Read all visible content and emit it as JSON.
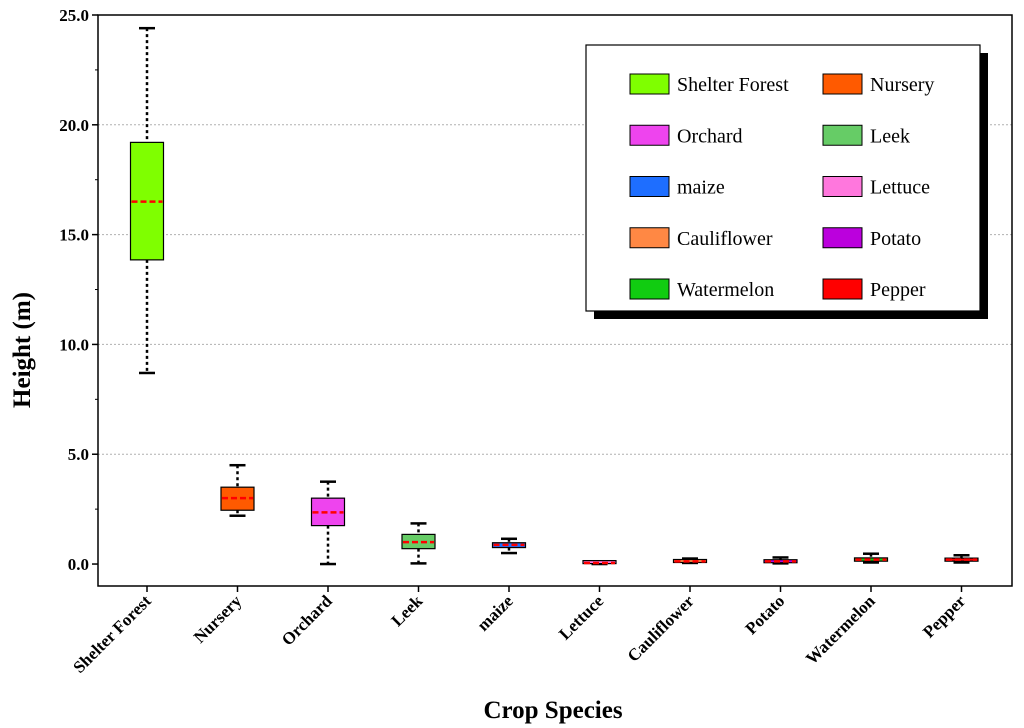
{
  "chart_data": {
    "type": "box",
    "xlabel": "Crop Species",
    "ylabel": "Height  (m)",
    "ylim": [
      -1.0,
      25.0
    ],
    "yticks": [
      0.0,
      5.0,
      10.0,
      15.0,
      20.0,
      25.0
    ],
    "ytick_labels": [
      "0.0",
      "5.0",
      "10.0",
      "15.0",
      "20.0",
      "25.0"
    ],
    "grid": "horizontal dotted",
    "legend_position": "top-right",
    "categories": [
      "Shelter Forest",
      "Nursery",
      "Orchard",
      "Leek",
      "maize",
      "Lettuce",
      "Cauliflower",
      "Potato",
      "Watermelon",
      "Pepper"
    ],
    "series": [
      {
        "name": "Shelter Forest",
        "color": "#7FFF00",
        "min": 8.7,
        "q1": 13.85,
        "median": 16.5,
        "q3": 19.2,
        "max": 24.4
      },
      {
        "name": "Nursery",
        "color": "#FF5A00",
        "min": 2.2,
        "q1": 2.45,
        "median": 3.0,
        "q3": 3.5,
        "max": 4.5
      },
      {
        "name": "Orchard",
        "color": "#EE44EE",
        "min": 0.0,
        "q1": 1.75,
        "median": 2.35,
        "q3": 3.0,
        "max": 3.75
      },
      {
        "name": "Leek",
        "color": "#66CC66",
        "min": 0.03,
        "q1": 0.7,
        "median": 1.0,
        "q3": 1.35,
        "max": 1.85
      },
      {
        "name": "maize",
        "color": "#1E6EFF",
        "min": 0.5,
        "q1": 0.75,
        "median": 0.87,
        "q3": 0.97,
        "max": 1.15
      },
      {
        "name": "Lettuce",
        "color": "#FF77DD",
        "min": 0.0,
        "q1": 0.02,
        "median": 0.05,
        "q3": 0.08,
        "max": 0.12
      },
      {
        "name": "Cauliflower",
        "color": "#FF8844",
        "min": 0.05,
        "q1": 0.07,
        "median": 0.12,
        "q3": 0.17,
        "max": 0.25
      },
      {
        "name": "Potato",
        "color": "#BB00DD",
        "min": 0.03,
        "q1": 0.06,
        "median": 0.12,
        "q3": 0.18,
        "max": 0.3
      },
      {
        "name": "Watermelon",
        "color": "#11CC11",
        "min": 0.07,
        "q1": 0.13,
        "median": 0.2,
        "q3": 0.28,
        "max": 0.47
      },
      {
        "name": "Pepper",
        "color": "#FF0000",
        "min": 0.07,
        "q1": 0.13,
        "median": 0.2,
        "q3": 0.27,
        "max": 0.4
      }
    ],
    "legend_items": [
      {
        "label": "Shelter Forest",
        "color": "#7FFF00"
      },
      {
        "label": "Nursery",
        "color": "#FF5A00"
      },
      {
        "label": "Orchard",
        "color": "#EE44EE"
      },
      {
        "label": "Leek",
        "color": "#66CC66"
      },
      {
        "label": "maize",
        "color": "#1E6EFF"
      },
      {
        "label": "Lettuce",
        "color": "#FF77DD"
      },
      {
        "label": "Cauliflower",
        "color": "#FF8844"
      },
      {
        "label": "Potato",
        "color": "#BB00DD"
      },
      {
        "label": "Watermelon",
        "color": "#11CC11"
      },
      {
        "label": "Pepper",
        "color": "#FF0000"
      }
    ],
    "median_line_color": "#FF0000"
  }
}
